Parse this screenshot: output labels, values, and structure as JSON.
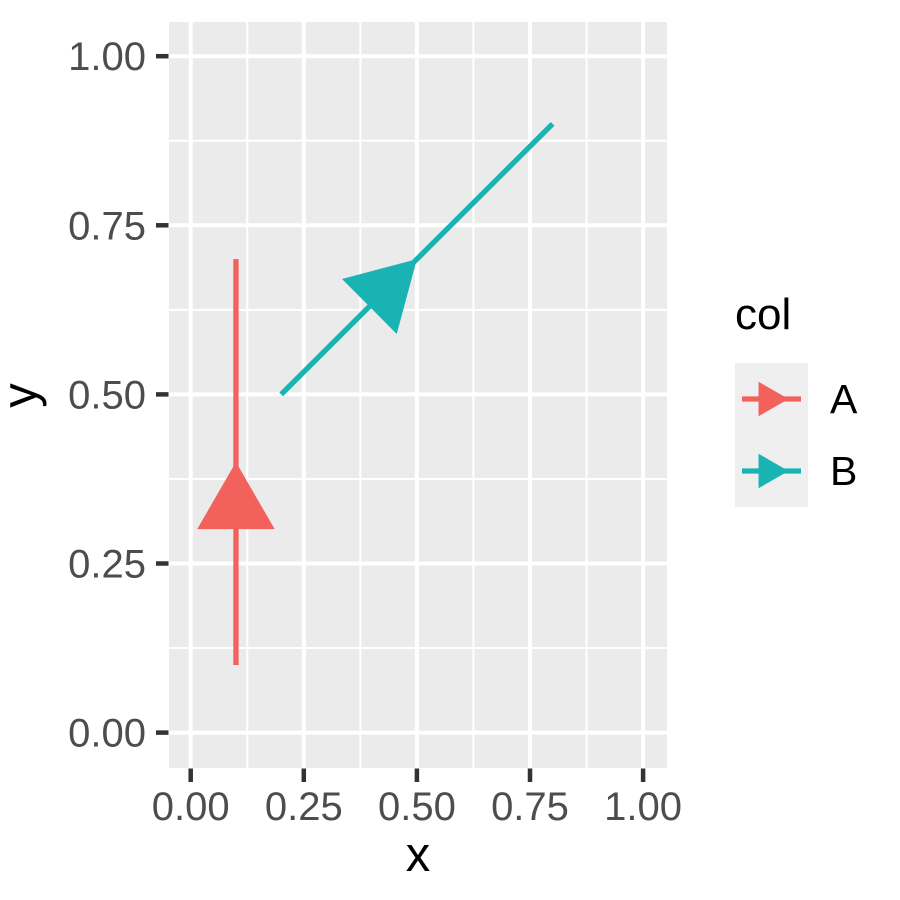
{
  "figure": {
    "background": "#FFFFFF",
    "panel_bg": "#EBEBEB",
    "grid_color": "#FFFFFF",
    "tick_color": "#333333",
    "tick_label_color": "#4D4D4D",
    "axis_title_color": "#000000"
  },
  "chart_data": {
    "type": "arrow-segment",
    "title": "",
    "xlabel": "x",
    "ylabel": "y",
    "xlim": [
      0,
      1
    ],
    "ylim": [
      0,
      1
    ],
    "grid": {
      "major": true,
      "minor": true
    },
    "x_ticks": {
      "values": [
        0,
        0.25,
        0.5,
        0.75,
        1
      ],
      "labels": [
        "0.00",
        "0.25",
        "0.50",
        "0.75",
        "1.00"
      ]
    },
    "y_ticks": {
      "values": [
        0,
        0.25,
        0.5,
        0.75,
        1
      ],
      "labels": [
        "0.00",
        "0.25",
        "0.50",
        "0.75",
        "1.00"
      ]
    },
    "series": [
      {
        "name": "A",
        "color": "#F2615C",
        "x": 0.1,
        "y": 0.1,
        "xend": 0.1,
        "yend": 0.7
      },
      {
        "name": "B",
        "color": "#1AB3B3",
        "x": 0.2,
        "y": 0.5,
        "xend": 0.8,
        "yend": 0.9
      }
    ],
    "arrow": {
      "position": "middle",
      "angle_deg": 30,
      "type": "closed"
    },
    "legend": {
      "title": "col",
      "position": "right",
      "entries": [
        {
          "label": "A",
          "color": "#F2615C"
        },
        {
          "label": "B",
          "color": "#1AB3B3"
        }
      ]
    }
  }
}
